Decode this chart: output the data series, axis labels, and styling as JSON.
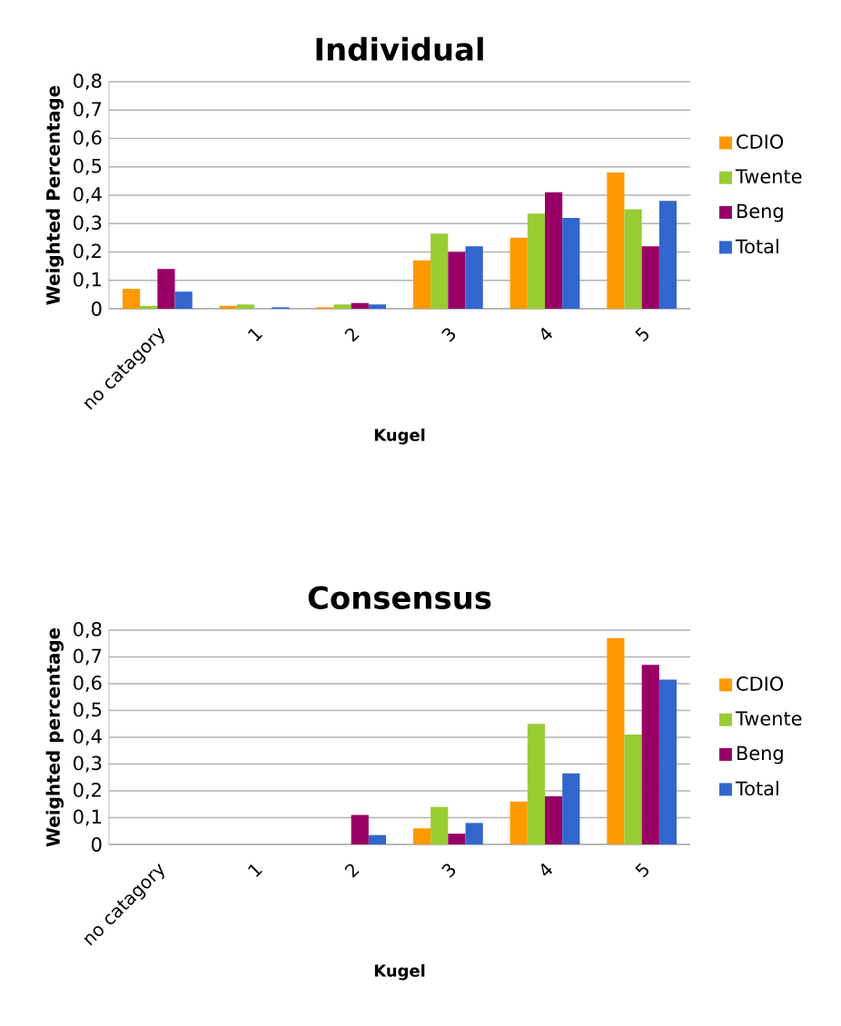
{
  "chart_data": [
    {
      "type": "bar",
      "title": "Individual",
      "xlabel": "Kugel",
      "ylabel": "Weighted Percentage",
      "categories": [
        "no catagory",
        "1",
        "2",
        "3",
        "4",
        "5"
      ],
      "grid": "y",
      "legend": "right",
      "ylim": [
        0,
        0.8
      ],
      "yticks": [
        0,
        {
          "value": 0.1,
          "label": "0,1"
        },
        {
          "value": 0.2,
          "label": "0,2"
        },
        {
          "value": 0.3,
          "label": "0,3"
        },
        {
          "value": 0.4,
          "label": "0,4"
        },
        {
          "value": 0.5,
          "label": "0,5"
        },
        {
          "value": 0.6,
          "label": "0,6"
        },
        {
          "value": 0.7,
          "label": "0,7"
        },
        {
          "value": 0.8,
          "label": "0,8"
        }
      ],
      "series": [
        {
          "name": "CDIO",
          "color": "#ff9900",
          "values": [
            0.07,
            0.01,
            0.005,
            0.17,
            0.25,
            0.48
          ]
        },
        {
          "name": "Twente",
          "color": "#99cc33",
          "values": [
            0.01,
            0.015,
            0.015,
            0.265,
            0.335,
            0.35
          ]
        },
        {
          "name": "Beng",
          "color": "#990066",
          "values": [
            0.14,
            0,
            0.02,
            0.2,
            0.41,
            0.22
          ]
        },
        {
          "name": "Total",
          "color": "#3366cc",
          "values": [
            0.06,
            0.005,
            0.015,
            0.22,
            0.32,
            0.38
          ]
        }
      ]
    },
    {
      "type": "bar",
      "title": "Consensus",
      "xlabel": "Kugel",
      "ylabel": "Weighted percentage",
      "categories": [
        "no catagory",
        "1",
        "2",
        "3",
        "4",
        "5"
      ],
      "grid": "y",
      "legend": "right",
      "ylim": [
        0,
        0.8
      ],
      "yticks": [
        0,
        {
          "value": 0.1,
          "label": "0,1"
        },
        {
          "value": 0.2,
          "label": "0,2"
        },
        {
          "value": 0.3,
          "label": "0,3"
        },
        {
          "value": 0.4,
          "label": "0,4"
        },
        {
          "value": 0.5,
          "label": "0,5"
        },
        {
          "value": 0.6,
          "label": "0,6"
        },
        {
          "value": 0.7,
          "label": "0,7"
        },
        {
          "value": 0.8,
          "label": "0,8"
        }
      ],
      "series": [
        {
          "name": "CDIO",
          "color": "#ff9900",
          "values": [
            0,
            0,
            0,
            0.06,
            0.16,
            0.77
          ]
        },
        {
          "name": "Twente",
          "color": "#99cc33",
          "values": [
            0,
            0,
            0,
            0.14,
            0.45,
            0.41
          ]
        },
        {
          "name": "Beng",
          "color": "#990066",
          "values": [
            0,
            0,
            0.11,
            0.04,
            0.18,
            0.67
          ]
        },
        {
          "name": "Total",
          "color": "#3366cc",
          "values": [
            0,
            0,
            0.035,
            0.08,
            0.265,
            0.615
          ]
        }
      ]
    }
  ]
}
